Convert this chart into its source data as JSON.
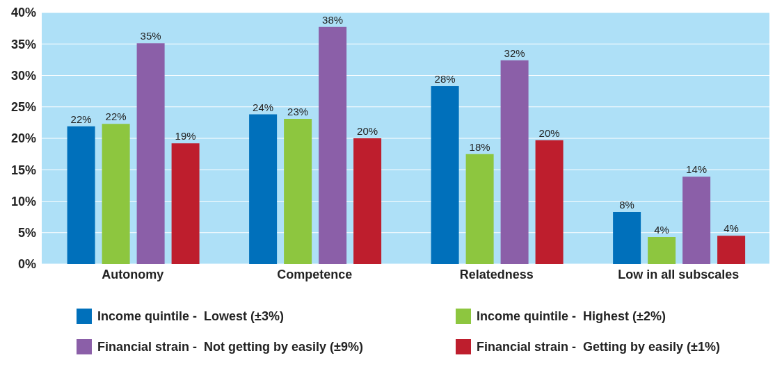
{
  "chart_data": {
    "type": "bar",
    "categories": [
      "Autonomy",
      "Competence",
      "Relatedness",
      "Low in all subscales"
    ],
    "series": [
      {
        "name": "Income quintile -  Lowest (±3%)",
        "color": "#0070bb",
        "values": [
          21.9,
          23.8,
          28.3,
          8.3
        ],
        "value_labels": [
          "22%",
          "24%",
          "28%",
          "8%"
        ]
      },
      {
        "name": "Income quintile -  Highest (±2%)",
        "color": "#8dc63f",
        "values": [
          22.3,
          23.1,
          17.5,
          4.3
        ],
        "value_labels": [
          "22%",
          "23%",
          "18%",
          "4%"
        ]
      },
      {
        "name": "Financial strain -  Not getting by easily (±9%)",
        "color": "#8b5fa8",
        "values": [
          35.1,
          37.7,
          32.4,
          13.9
        ],
        "value_labels": [
          "35%",
          "38%",
          "32%",
          "14%"
        ]
      },
      {
        "name": "Financial strain -  Getting by easily (±1%)",
        "color": "#be1e2d",
        "values": [
          19.2,
          20.0,
          19.7,
          4.5
        ],
        "value_labels": [
          "19%",
          "20%",
          "20%",
          "4%"
        ]
      }
    ],
    "ylim": [
      0,
      40
    ],
    "yticks": [
      {
        "value": 0,
        "label": "0%"
      },
      {
        "value": 5,
        "label": "5%"
      },
      {
        "value": 10,
        "label": "10%"
      },
      {
        "value": 15,
        "label": "15%"
      },
      {
        "value": 20,
        "label": "20%"
      },
      {
        "value": 25,
        "label": "25%"
      },
      {
        "value": 30,
        "label": "30%"
      },
      {
        "value": 35,
        "label": "35%"
      },
      {
        "value": 40,
        "label": "40%"
      }
    ],
    "grid": "y",
    "legend": "bottom"
  }
}
